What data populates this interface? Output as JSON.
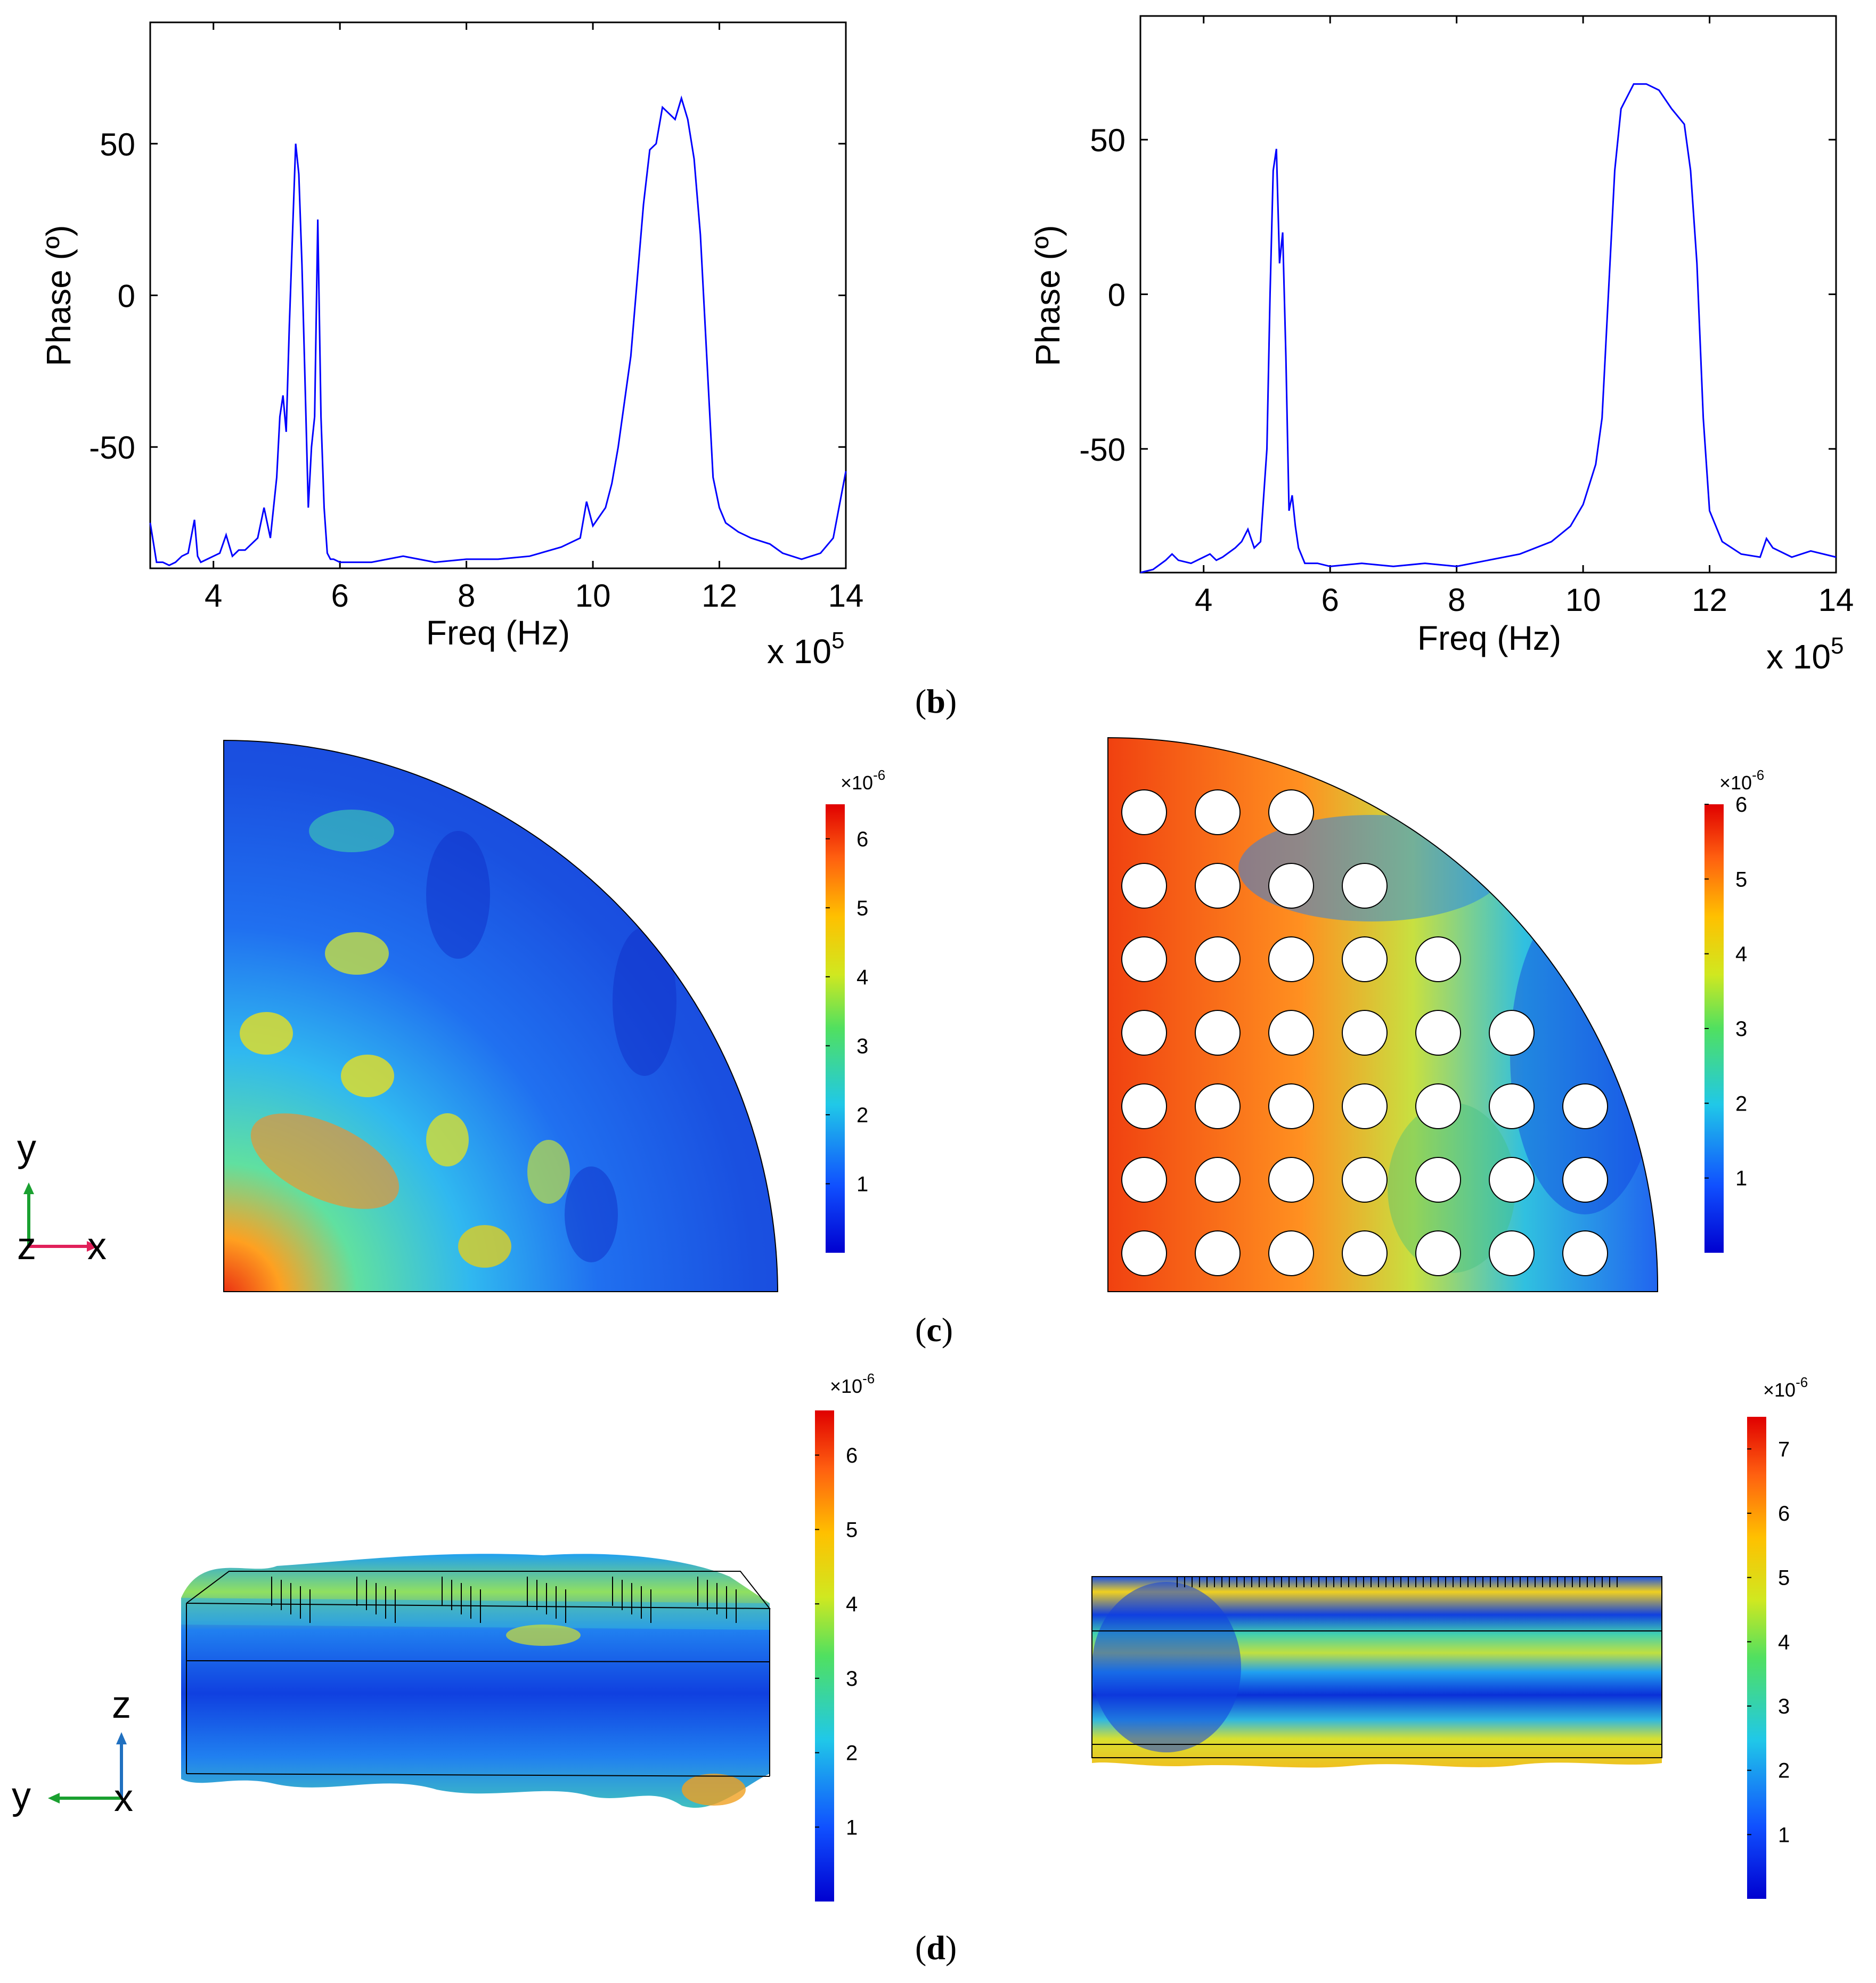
{
  "figure": {
    "panel_labels": {
      "b": "b",
      "c": "c",
      "d": "d"
    },
    "axis_triad_top": {
      "y": "y",
      "z": "z",
      "x": "x"
    },
    "axis_triad_bottom": {
      "z": "z",
      "y": "y",
      "x": "x"
    }
  },
  "chart_data": [
    {
      "type": "line",
      "title": "",
      "xlabel": "Freq (Hz)",
      "ylabel": "Phase (º)",
      "x_multiplier": "x 10",
      "x_multiplier_exp": "5",
      "xlim": [
        3,
        14
      ],
      "ylim": [
        -90,
        90
      ],
      "xticks": [
        4,
        6,
        8,
        10,
        12,
        14
      ],
      "yticks": [
        50,
        0,
        -50
      ],
      "xtick_labels": [
        "4",
        "6",
        "8",
        "10",
        "12",
        "14"
      ],
      "ytick_labels": [
        "50",
        "0",
        "-50"
      ],
      "color": "#0000ff",
      "x": [
        3.0,
        3.1,
        3.2,
        3.3,
        3.4,
        3.5,
        3.6,
        3.7,
        3.75,
        3.8,
        3.9,
        4.0,
        4.1,
        4.2,
        4.3,
        4.35,
        4.4,
        4.5,
        4.6,
        4.7,
        4.8,
        4.9,
        5.0,
        5.05,
        5.1,
        5.15,
        5.2,
        5.25,
        5.3,
        5.35,
        5.4,
        5.45,
        5.5,
        5.55,
        5.6,
        5.65,
        5.7,
        5.75,
        5.8,
        5.85,
        5.9,
        6.0,
        6.2,
        6.5,
        7.0,
        7.5,
        8.0,
        8.5,
        9.0,
        9.5,
        9.8,
        9.9,
        10.0,
        10.2,
        10.3,
        10.4,
        10.6,
        10.8,
        10.9,
        11.0,
        11.1,
        11.2,
        11.3,
        11.4,
        11.5,
        11.6,
        11.7,
        11.8,
        11.9,
        12.0,
        12.1,
        12.3,
        12.5,
        12.8,
        13.0,
        13.3,
        13.6,
        13.8,
        14.0
      ],
      "y": [
        -75,
        -88,
        -88,
        -89,
        -88,
        -86,
        -85,
        -74,
        -86,
        -88,
        -87,
        -86,
        -85,
        -79,
        -86,
        -85,
        -84,
        -84,
        -82,
        -80,
        -70,
        -80,
        -60,
        -40,
        -33,
        -45,
        -10,
        20,
        50,
        40,
        10,
        -30,
        -70,
        -50,
        -40,
        25,
        -40,
        -70,
        -85,
        -87,
        -87,
        -88,
        -88,
        -88,
        -86,
        -88,
        -87,
        -87,
        -86,
        -83,
        -80,
        -68,
        -76,
        -70,
        -62,
        -50,
        -20,
        30,
        48,
        50,
        62,
        60,
        58,
        65,
        58,
        45,
        20,
        -20,
        -60,
        -70,
        -75,
        -78,
        -80,
        -82,
        -85,
        -87,
        -85,
        -80,
        -58
      ]
    },
    {
      "type": "line",
      "title": "",
      "xlabel": "Freq (Hz)",
      "ylabel": "Phase (º)",
      "x_multiplier": "x 10",
      "x_multiplier_exp": "5",
      "xlim": [
        3,
        14
      ],
      "ylim": [
        -90,
        90
      ],
      "xticks": [
        4,
        6,
        8,
        10,
        12,
        14
      ],
      "yticks": [
        50,
        0,
        -50
      ],
      "xtick_labels": [
        "4",
        "6",
        "8",
        "10",
        "12",
        "14"
      ],
      "ytick_labels": [
        "50",
        "0",
        "-50"
      ],
      "color": "#0000ff",
      "x": [
        3.0,
        3.2,
        3.4,
        3.5,
        3.6,
        3.8,
        4.0,
        4.1,
        4.2,
        4.3,
        4.5,
        4.6,
        4.7,
        4.8,
        4.9,
        5.0,
        5.05,
        5.1,
        5.15,
        5.2,
        5.25,
        5.3,
        5.35,
        5.4,
        5.45,
        5.5,
        5.6,
        5.8,
        6.0,
        6.5,
        7.0,
        7.5,
        8.0,
        8.5,
        9.0,
        9.5,
        9.8,
        10.0,
        10.2,
        10.3,
        10.4,
        10.5,
        10.6,
        10.8,
        11.0,
        11.2,
        11.4,
        11.6,
        11.7,
        11.8,
        11.9,
        12.0,
        12.2,
        12.5,
        12.8,
        12.9,
        13.0,
        13.3,
        13.6,
        14.0
      ],
      "y": [
        -90,
        -89,
        -86,
        -84,
        -86,
        -87,
        -85,
        -84,
        -86,
        -85,
        -82,
        -80,
        -76,
        -82,
        -80,
        -50,
        0,
        40,
        47,
        10,
        20,
        -20,
        -70,
        -65,
        -75,
        -82,
        -87,
        -87,
        -88,
        -87,
        -88,
        -87,
        -88,
        -86,
        -84,
        -80,
        -75,
        -68,
        -55,
        -40,
        0,
        40,
        60,
        68,
        68,
        66,
        60,
        55,
        40,
        10,
        -40,
        -70,
        -80,
        -84,
        -85,
        -79,
        -82,
        -85,
        -83,
        -85
      ]
    }
  ],
  "colorbars": [
    {
      "title": "×10",
      "title_exp": "-6",
      "ticks": [
        "1",
        "2",
        "3",
        "4",
        "5",
        "6"
      ],
      "max": 6.5
    },
    {
      "title": "×10",
      "title_exp": "-6",
      "ticks": [
        "1",
        "2",
        "3",
        "4",
        "5",
        "6"
      ],
      "max": 6.0
    },
    {
      "title": "×10",
      "title_exp": "-6",
      "ticks": [
        "1",
        "2",
        "3",
        "4",
        "5",
        "6"
      ],
      "max": 6.6
    },
    {
      "title": "×10",
      "title_exp": "-6",
      "ticks": [
        "1",
        "2",
        "3",
        "4",
        "5",
        "6",
        "7"
      ],
      "max": 7.5
    }
  ]
}
